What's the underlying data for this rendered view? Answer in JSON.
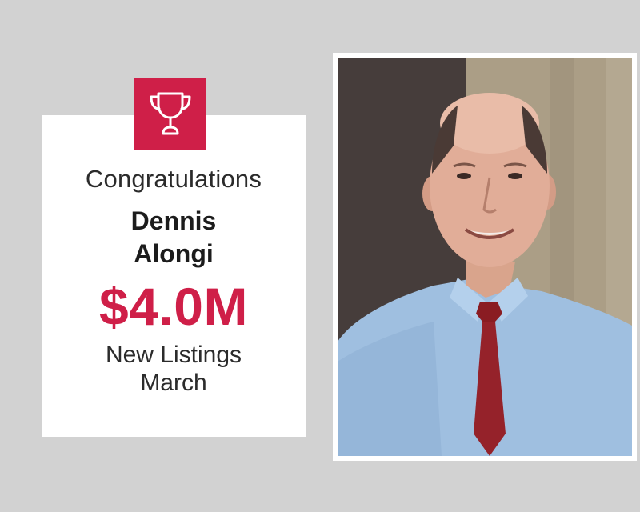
{
  "announcement": {
    "greeting": "Congratulations",
    "name_first": "Dennis",
    "name_last": "Alongi",
    "amount": "$4.0M",
    "caption_line1": "New Listings",
    "caption_line2": "March"
  },
  "icons": {
    "award": "trophy-icon"
  },
  "colors": {
    "accent": "#cf1f48",
    "background": "#d2d2d2",
    "card": "#ffffff",
    "text": "#2b2b2b"
  }
}
